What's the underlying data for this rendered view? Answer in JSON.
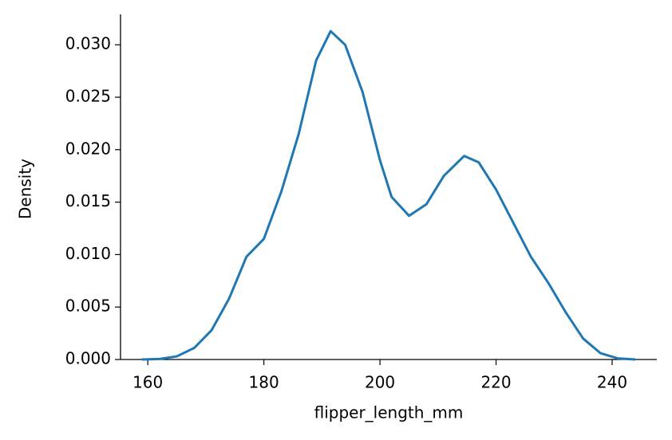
{
  "chart_data": {
    "type": "line",
    "xlabel": "flipper_length_mm",
    "ylabel": "Density",
    "x": [
      159,
      162,
      165,
      168,
      171,
      174,
      177,
      180,
      183,
      186,
      189,
      191.5,
      194,
      197,
      200,
      202,
      205,
      208,
      211,
      214.5,
      217,
      220,
      223,
      226,
      229,
      232,
      235,
      238,
      241,
      244
    ],
    "series": [
      {
        "color": "#1f77b4",
        "values": [
          0.0,
          5e-05,
          0.0003,
          0.0011,
          0.0028,
          0.0058,
          0.0098,
          0.0115,
          0.016,
          0.0215,
          0.0285,
          0.0313,
          0.03,
          0.0255,
          0.019,
          0.0155,
          0.0137,
          0.0148,
          0.0175,
          0.0194,
          0.0188,
          0.0162,
          0.013,
          0.0098,
          0.0073,
          0.0045,
          0.002,
          0.0006,
          0.0001,
          0.0
        ]
      }
    ],
    "xlim": [
      155.3,
      247.7
    ],
    "ylim": [
      0,
      0.0329
    ],
    "xticks": [
      160,
      180,
      200,
      220,
      240
    ],
    "yticks": [
      {
        "value": 0,
        "label": "0.000"
      },
      {
        "value": 0.005,
        "label": "0.005"
      },
      {
        "value": 0.01,
        "label": "0.010"
      },
      {
        "value": 0.015,
        "label": "0.015"
      },
      {
        "value": 0.02,
        "label": "0.020"
      },
      {
        "value": 0.025,
        "label": "0.025"
      },
      {
        "value": 0.03,
        "label": "0.030"
      }
    ],
    "grid": false
  }
}
